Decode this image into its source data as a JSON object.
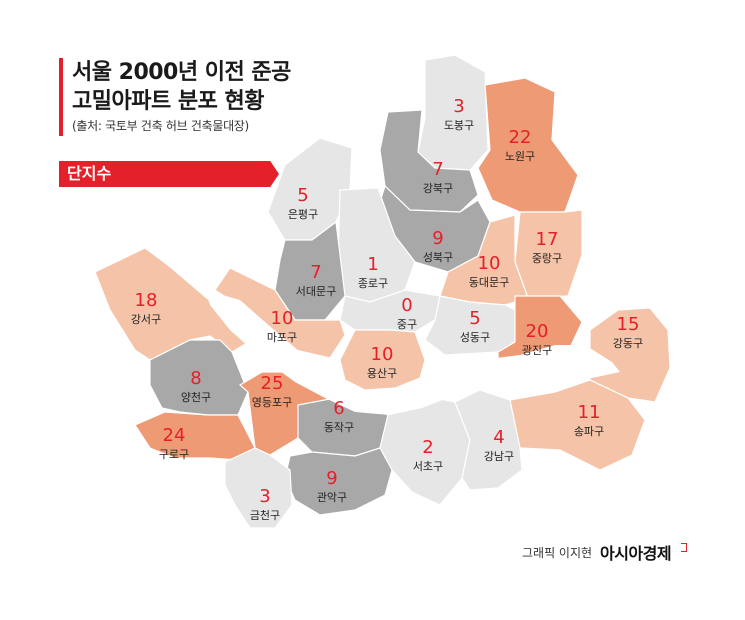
{
  "title_line1": "서울 2000년 이전 준공",
  "title_line2": "고밀아파트 분포 현황",
  "source": "(출처: 국토부 건축 허브 건축물대장)",
  "legend_label": "단지수",
  "credit": "그래픽 이지현",
  "brand": "아시아경제",
  "colors": {
    "high": "#ee9a74",
    "mid": "#f5c3a8",
    "light": "#e6e6e6",
    "dark": "#a8a8a8",
    "river": "#ffffff",
    "accent": "#e4202a"
  },
  "districts": [
    {
      "id": "dobong",
      "name": "도봉구",
      "count": "3"
    },
    {
      "id": "nowon",
      "name": "노원구",
      "count": "22"
    },
    {
      "id": "gangbuk",
      "name": "강북구",
      "count": "7"
    },
    {
      "id": "eunpyeong",
      "name": "은평구",
      "count": "5"
    },
    {
      "id": "seongbuk",
      "name": "성북구",
      "count": "9"
    },
    {
      "id": "jungnang",
      "name": "중랑구",
      "count": "17"
    },
    {
      "id": "jongno",
      "name": "종로구",
      "count": "1"
    },
    {
      "id": "seodaemun",
      "name": "서대문구",
      "count": "7"
    },
    {
      "id": "dongdaemun",
      "name": "동대문구",
      "count": "10"
    },
    {
      "id": "gangseo",
      "name": "강서구",
      "count": "18"
    },
    {
      "id": "junggu",
      "name": "중구",
      "count": "0"
    },
    {
      "id": "mapo",
      "name": "마포구",
      "count": "10"
    },
    {
      "id": "seongdong",
      "name": "성동구",
      "count": "5"
    },
    {
      "id": "gwangjin",
      "name": "광진구",
      "count": "20"
    },
    {
      "id": "gangdong",
      "name": "강동구",
      "count": "15"
    },
    {
      "id": "yongsan",
      "name": "용산구",
      "count": "10"
    },
    {
      "id": "yangcheon",
      "name": "양천구",
      "count": "8"
    },
    {
      "id": "yeongdeungpo",
      "name": "영등포구",
      "count": "25"
    },
    {
      "id": "dongjak",
      "name": "동작구",
      "count": "6"
    },
    {
      "id": "songpa",
      "name": "송파구",
      "count": "11"
    },
    {
      "id": "guro",
      "name": "구로구",
      "count": "24"
    },
    {
      "id": "seocho",
      "name": "서초구",
      "count": "2"
    },
    {
      "id": "gangnam",
      "name": "강남구",
      "count": "4"
    },
    {
      "id": "gwanak",
      "name": "관악구",
      "count": "9"
    },
    {
      "id": "geumcheon",
      "name": "금천구",
      "count": "3"
    }
  ]
}
